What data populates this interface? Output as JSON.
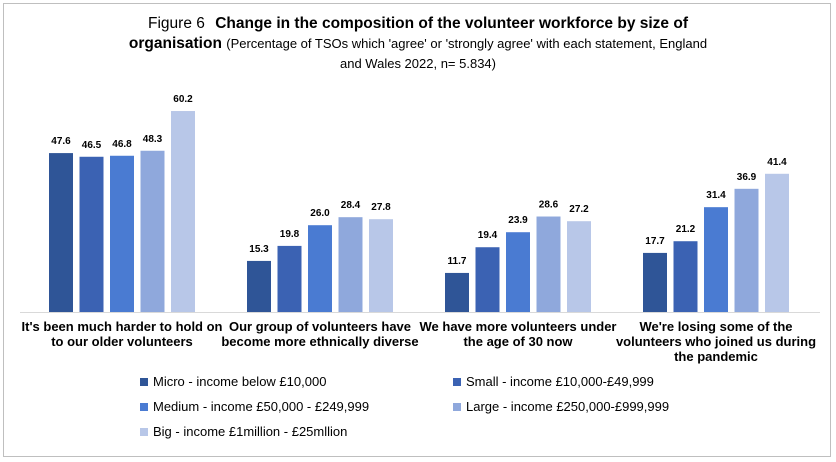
{
  "figure_label": "Figure 6",
  "title_main_line1": "Change in the composition of the volunteer workforce by size of",
  "title_main_line2": "organisation",
  "title_sub_line1": "(Percentage of TSOs which 'agree' or 'strongly agree' with each statement, England",
  "title_sub_line2": "and Wales 2022, n= 5.834)",
  "chart_data": {
    "type": "bar",
    "categories": [
      [
        "It's been much harder to hold on",
        "to our older volunteers"
      ],
      [
        "Our group of volunteers have",
        "become more ethnically diverse"
      ],
      [
        "We have more volunteers under",
        "the age of 30 now"
      ],
      [
        "We're losing some of the",
        "volunteers who joined us during",
        "the pandemic"
      ]
    ],
    "series": [
      {
        "name": "Micro - income below £10,000",
        "color": "#2f5597",
        "values": [
          47.6,
          15.3,
          11.7,
          17.7
        ]
      },
      {
        "name": "Small - income £10,000-£49,999",
        "color": "#3b62b3",
        "values": [
          46.5,
          19.8,
          19.4,
          21.2
        ]
      },
      {
        "name": "Medium - income £50,000 - £249,999",
        "color": "#4a7bd2",
        "values": [
          46.8,
          26.0,
          23.9,
          31.4
        ]
      },
      {
        "name": "Large - income £250,000-£999,999",
        "color": "#8fa8dc",
        "values": [
          48.3,
          28.4,
          28.6,
          36.9
        ]
      },
      {
        "name": "Big - income £1million - £25mllion",
        "color": "#b8c7e8",
        "values": [
          60.2,
          27.8,
          27.2,
          41.4
        ]
      }
    ],
    "ylim": [
      0,
      65
    ],
    "grid": false,
    "legend_position": "bottom"
  }
}
